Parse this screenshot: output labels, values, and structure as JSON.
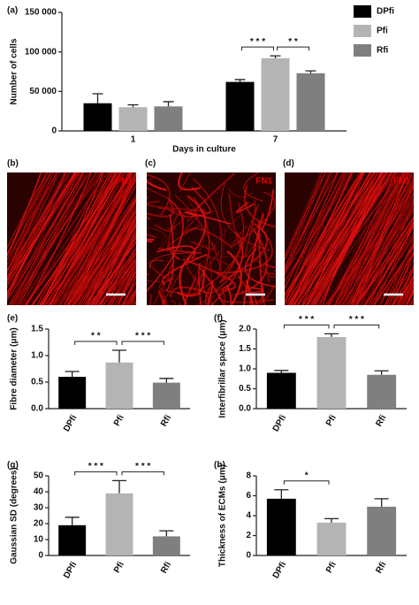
{
  "chart_data": [
    {
      "type": "bar",
      "panel": "(a)",
      "xlabel": "Days in culture",
      "ylabel": "Number of cells",
      "categories": [
        "1",
        "7"
      ],
      "series": [
        {
          "name": "DPfi",
          "color": "#000000",
          "values": [
            35000,
            62000
          ],
          "errors": [
            12000,
            3000
          ]
        },
        {
          "name": "Pfi",
          "color": "#b4b4b4",
          "values": [
            30000,
            92000
          ],
          "errors": [
            3000,
            3000
          ]
        },
        {
          "name": "Rfi",
          "color": "#7f7f7f",
          "values": [
            31000,
            73000
          ],
          "errors": [
            6000,
            3000
          ]
        }
      ],
      "ylim": [
        0,
        150000
      ],
      "yticks": [
        0,
        {
          "value": 50000,
          "label": "50 000"
        },
        {
          "value": 100000,
          "label": "100 000"
        },
        {
          "value": 150000,
          "label": "150 000"
        }
      ],
      "legend": "upper right",
      "annotations": [
        {
          "text": "* * *",
          "category": "7",
          "between": [
            "DPfi",
            "Pfi"
          ]
        },
        {
          "text": "* *",
          "category": "7",
          "between": [
            "Pfi",
            "Rfi"
          ]
        }
      ]
    },
    {
      "type": "bar",
      "panel": "(e)",
      "ylabel": "Fibre diameter (μm)",
      "categories": [
        "DPfi",
        "Pfi",
        "Rfi"
      ],
      "values": [
        0.6,
        0.87,
        0.49
      ],
      "errors": [
        0.1,
        0.23,
        0.08
      ],
      "colors": [
        "#000000",
        "#b4b4b4",
        "#7f7f7f"
      ],
      "ylim": [
        0,
        1.5
      ],
      "yticks": [
        {
          "value": 0,
          "label": "0.0"
        },
        0.5,
        {
          "value": 1,
          "label": "1.0"
        },
        1.5
      ],
      "annotations": [
        {
          "text": "* *",
          "between": [
            "DPfi",
            "Pfi"
          ]
        },
        {
          "text": "* * *",
          "between": [
            "Pfi",
            "Rfi"
          ]
        }
      ]
    },
    {
      "type": "bar",
      "panel": "(f)",
      "ylabel": "Interfibrillar space (μm)",
      "categories": [
        "DPfi",
        "Pfi",
        "Rfi"
      ],
      "values": [
        0.9,
        1.8,
        0.85
      ],
      "errors": [
        0.06,
        0.08,
        0.1
      ],
      "colors": [
        "#000000",
        "#b4b4b4",
        "#7f7f7f"
      ],
      "ylim": [
        0,
        2
      ],
      "yticks": [
        {
          "value": 0,
          "label": "0.0"
        },
        0.5,
        {
          "value": 1,
          "label": "1.0"
        },
        1.5,
        {
          "value": 2,
          "label": "2.0"
        }
      ],
      "annotations": [
        {
          "text": "* * *",
          "between": [
            "DPfi",
            "Pfi"
          ]
        },
        {
          "text": "* * *",
          "between": [
            "Pfi",
            "Rfi"
          ]
        }
      ]
    },
    {
      "type": "bar",
      "panel": "(g)",
      "ylabel": "Gaussian SD (degrees)",
      "categories": [
        "DPfi",
        "Pfi",
        "Rfi"
      ],
      "values": [
        19,
        39,
        12
      ],
      "errors": [
        5,
        8,
        3.5
      ],
      "colors": [
        "#000000",
        "#b4b4b4",
        "#7f7f7f"
      ],
      "ylim": [
        0,
        50
      ],
      "yticks": [
        0,
        10,
        20,
        30,
        40,
        50
      ],
      "annotations": [
        {
          "text": "* * *",
          "between": [
            "DPfi",
            "Pfi"
          ]
        },
        {
          "text": "* * *",
          "between": [
            "Pfi",
            "Rfi"
          ]
        }
      ]
    },
    {
      "type": "bar",
      "panel": "(h)",
      "ylabel": "Thickness of ECMs (μm)",
      "categories": [
        "DPfi",
        "Pfi",
        "Rfi"
      ],
      "values": [
        5.7,
        3.3,
        4.9
      ],
      "errors": [
        0.9,
        0.4,
        0.8
      ],
      "colors": [
        "#000000",
        "#b4b4b4",
        "#7f7f7f"
      ],
      "ylim": [
        0,
        8
      ],
      "yticks": [
        0,
        2,
        4,
        6,
        8
      ],
      "annotations": [
        {
          "text": "*",
          "between": [
            "DPfi",
            "Pfi"
          ]
        }
      ]
    }
  ],
  "images": [
    {
      "label": "(b)",
      "stain": "FN1"
    },
    {
      "label": "(c)",
      "stain": "FN1"
    },
    {
      "label": "(d)",
      "stain": "FN1"
    }
  ]
}
